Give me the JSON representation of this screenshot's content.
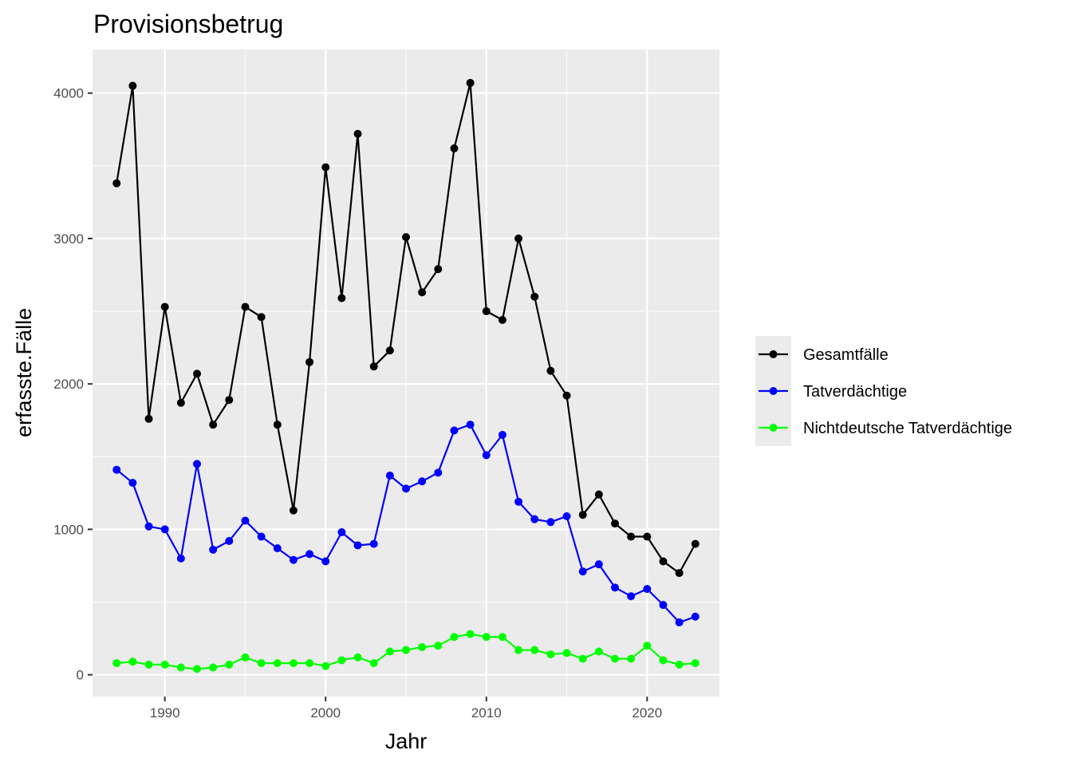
{
  "chart_data": {
    "type": "line",
    "title": "Provisionsbetrug",
    "xlabel": "Jahr",
    "ylabel": "erfasste.Fälle",
    "xlim": [
      1985.5,
      2024.5
    ],
    "ylim": [
      -150,
      4300
    ],
    "x_ticks": [
      1990,
      2000,
      2010,
      2020
    ],
    "y_ticks": [
      0,
      1000,
      2000,
      3000,
      4000
    ],
    "x_minor": [
      1985,
      1995,
      2005,
      2015
    ],
    "y_minor": [
      500,
      1500,
      2500,
      3500
    ],
    "grid": true,
    "legend_position": "right",
    "x": [
      1987,
      1988,
      1989,
      1990,
      1991,
      1992,
      1993,
      1994,
      1995,
      1996,
      1997,
      1998,
      1999,
      2000,
      2001,
      2002,
      2003,
      2004,
      2005,
      2006,
      2007,
      2008,
      2009,
      2010,
      2011,
      2012,
      2013,
      2014,
      2015,
      2016,
      2017,
      2018,
      2019,
      2020,
      2021,
      2022,
      2023
    ],
    "series": [
      {
        "name": "Gesamtfälle",
        "color": "#000000",
        "values": [
          3380,
          4050,
          1760,
          2530,
          1870,
          2070,
          1720,
          1890,
          2530,
          2460,
          1720,
          1130,
          2150,
          3490,
          2590,
          3720,
          2120,
          2230,
          3010,
          2630,
          2790,
          3620,
          4070,
          2500,
          2440,
          3000,
          2600,
          2090,
          1920,
          1100,
          1240,
          1040,
          950,
          950,
          780,
          700,
          900
        ]
      },
      {
        "name": "Tatverdächtige",
        "color": "#0000ff",
        "values": [
          1410,
          1320,
          1020,
          1000,
          800,
          1450,
          860,
          920,
          1060,
          950,
          870,
          790,
          830,
          780,
          980,
          890,
          900,
          1370,
          1280,
          1330,
          1390,
          1680,
          1720,
          1510,
          1650,
          1190,
          1070,
          1050,
          1090,
          710,
          760,
          600,
          540,
          590,
          480,
          360,
          400
        ]
      },
      {
        "name": "Nichtdeutsche Tatverdächtige",
        "color": "#00ff00",
        "values": [
          80,
          90,
          70,
          70,
          50,
          40,
          50,
          70,
          120,
          80,
          80,
          80,
          80,
          60,
          100,
          120,
          80,
          160,
          170,
          190,
          200,
          260,
          280,
          260,
          260,
          170,
          170,
          140,
          150,
          110,
          160,
          110,
          110,
          200,
          100,
          70,
          80
        ]
      }
    ]
  }
}
